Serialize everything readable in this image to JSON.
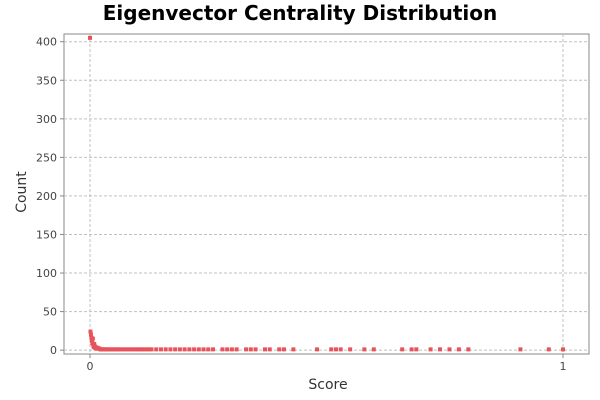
{
  "chart_data": {
    "type": "scatter",
    "title": "Eigenvector Centrality Distribution",
    "xlabel": "Score",
    "ylabel": "Count",
    "xlim": [
      -0.055,
      1.055
    ],
    "ylim": [
      -5,
      410
    ],
    "x_ticks": [
      {
        "value": 0,
        "label": "0"
      },
      {
        "value": 1,
        "label": "1"
      }
    ],
    "y_ticks": [
      {
        "value": 0,
        "label": "0"
      },
      {
        "value": 50,
        "label": "50"
      },
      {
        "value": 100,
        "label": "100"
      },
      {
        "value": 150,
        "label": "150"
      },
      {
        "value": 200,
        "label": "200"
      },
      {
        "value": 250,
        "label": "250"
      },
      {
        "value": 300,
        "label": "300"
      },
      {
        "value": 350,
        "label": "350"
      },
      {
        "value": 400,
        "label": "400"
      }
    ],
    "grid": true,
    "point_color": "#e8525a",
    "series": [
      {
        "x": [
          0.0,
          0.001,
          0.002,
          0.003,
          0.004,
          0.005,
          0.006,
          0.007,
          0.008,
          0.009,
          0.01,
          0.011,
          0.012,
          0.013,
          0.014,
          0.016,
          0.018,
          0.02,
          0.022,
          0.024,
          0.026,
          0.028,
          0.03,
          0.033,
          0.036,
          0.04,
          0.044,
          0.048,
          0.052,
          0.056,
          0.06,
          0.065,
          0.07,
          0.075,
          0.08,
          0.085,
          0.09,
          0.095,
          0.1,
          0.105,
          0.11,
          0.115,
          0.12,
          0.125,
          0.13,
          0.14,
          0.15,
          0.16,
          0.17,
          0.18,
          0.19,
          0.2,
          0.21,
          0.22,
          0.23,
          0.24,
          0.25,
          0.26,
          0.28,
          0.29,
          0.3,
          0.31,
          0.33,
          0.34,
          0.35,
          0.37,
          0.38,
          0.4,
          0.41,
          0.43,
          0.48,
          0.51,
          0.52,
          0.53,
          0.55,
          0.58,
          0.6,
          0.66,
          0.68,
          0.69,
          0.72,
          0.74,
          0.76,
          0.78,
          0.8,
          0.91,
          0.97,
          1.0
        ],
        "y": [
          405,
          24,
          20,
          16,
          12,
          9,
          15,
          6,
          4,
          8,
          5,
          3,
          4,
          2,
          2,
          3,
          2,
          2,
          1,
          1,
          1,
          1,
          1,
          1,
          1,
          1,
          1,
          1,
          1,
          1,
          1,
          1,
          1,
          1,
          1,
          1,
          1,
          1,
          1,
          1,
          1,
          1,
          1,
          1,
          1,
          1,
          1,
          1,
          1,
          1,
          1,
          1,
          1,
          1,
          1,
          1,
          1,
          1,
          1,
          1,
          1,
          1,
          1,
          1,
          1,
          1,
          1,
          1,
          1,
          1,
          1,
          1,
          1,
          1,
          1,
          1,
          1,
          1,
          1,
          1,
          1,
          1,
          1,
          1,
          1,
          1,
          1,
          1
        ]
      }
    ]
  }
}
